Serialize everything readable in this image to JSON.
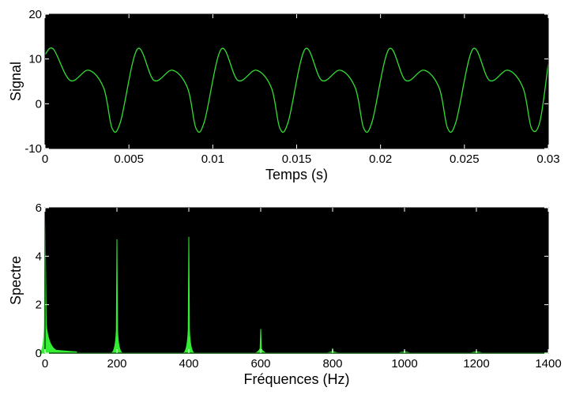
{
  "chart_data": [
    {
      "type": "line",
      "title": "",
      "xlabel": "Temps (s)",
      "ylabel": "Signal",
      "xlim": [
        0,
        0.03
      ],
      "ylim": [
        -10,
        20
      ],
      "xticks": [
        0,
        0.005,
        0.01,
        0.015,
        0.02,
        0.025,
        0.03
      ],
      "xtick_labels": [
        "0",
        "0.005",
        "0.01",
        "0.015",
        "0.02",
        "0.025",
        "0.03"
      ],
      "yticks": [
        -10,
        0,
        10,
        20
      ],
      "ytick_labels": [
        "-10",
        "0",
        "10",
        "20"
      ],
      "background": "#000000",
      "line_color": "#33dd33",
      "grid": false,
      "series": [
        {
          "x": [
            0,
            0.0005,
            0.0015,
            0.0026,
            0.0035,
            0.004,
            0.0045,
            0.0055,
            0.0065,
            0.0076,
            0.0085,
            0.009,
            0.0095,
            0.0105,
            0.0115,
            0.0126,
            0.0135,
            0.014,
            0.0145,
            0.0155,
            0.0165,
            0.0176,
            0.0185,
            0.019,
            0.0195,
            0.0205,
            0.0215,
            0.0226,
            0.0235,
            0.024,
            0.0245,
            0.0255,
            0.0265,
            0.0276,
            0.0285,
            0.029,
            0.0295,
            0.03
          ],
          "y": [
            11,
            12.2,
            5.2,
            7.5,
            3.5,
            -5.5,
            -4,
            12.2,
            5.2,
            7.5,
            3.5,
            -5.5,
            -4,
            12.2,
            5.2,
            7.5,
            3.5,
            -5.5,
            -4,
            12.2,
            5.2,
            7.5,
            3.5,
            -5.5,
            -4,
            12.2,
            5.2,
            7.5,
            3.5,
            -5.5,
            -4,
            12.2,
            5.2,
            7.5,
            3.5,
            -5.5,
            -4,
            9
          ]
        }
      ]
    },
    {
      "type": "area",
      "title": "",
      "xlabel": "Fréquences (Hz)",
      "ylabel": "Spectre",
      "xlim": [
        0,
        1400
      ],
      "ylim": [
        0,
        6
      ],
      "xticks": [
        0,
        200,
        400,
        600,
        800,
        1000,
        1200,
        1400
      ],
      "xtick_labels": [
        "0",
        "200",
        "400",
        "600",
        "800",
        "1000",
        "1200",
        "1400"
      ],
      "yticks": [
        0,
        2,
        4,
        6
      ],
      "ytick_labels": [
        "0",
        "2",
        "4",
        "6"
      ],
      "background": "#000000",
      "line_color": "#33ee33",
      "grid": false,
      "peaks": [
        {
          "x": 0,
          "y": 5.6
        },
        {
          "x": 200,
          "y": 4.7
        },
        {
          "x": 400,
          "y": 4.8
        },
        {
          "x": 600,
          "y": 1.0
        },
        {
          "x": 800,
          "y": 0.2
        },
        {
          "x": 1000,
          "y": 0.15
        },
        {
          "x": 1200,
          "y": 0.12
        }
      ]
    }
  ]
}
